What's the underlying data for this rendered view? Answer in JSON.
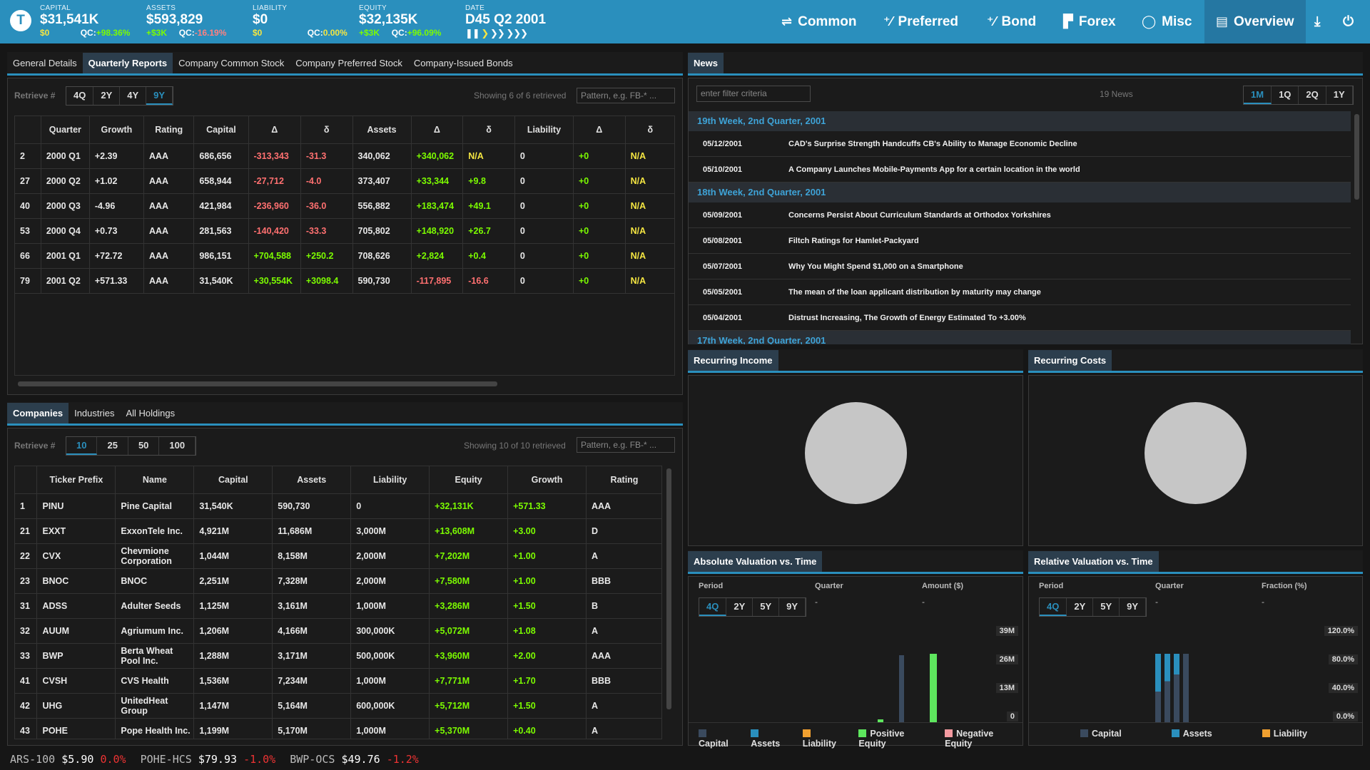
{
  "header": {
    "logo": "T",
    "stats": [
      {
        "label": "CAPITAL",
        "value": "$31,541K",
        "sub1": "$0",
        "sub2": "QC:",
        "sub3": "+98.36%"
      },
      {
        "label": "ASSETS",
        "value": "$593,829",
        "sub1": "+$3K",
        "sub2": "QC:",
        "sub3": "-16.19%"
      },
      {
        "label": "LIABILITY",
        "value": "$0",
        "sub1": "$0",
        "sub2": "QC:",
        "sub3": "0.00%"
      },
      {
        "label": "EQUITY",
        "value": "$32,135K",
        "sub1": "+$3K",
        "sub2": "QC:",
        "sub3": "+96.09%"
      },
      {
        "label": "DATE",
        "value": "D45 Q2 2001"
      }
    ],
    "nav": [
      "Common",
      "Preferred",
      "Bond",
      "Forex",
      "Misc",
      "Overview"
    ]
  },
  "company_tabs": [
    "General Details",
    "Quarterly Reports",
    "Company Common Stock",
    "Company Preferred Stock",
    "Company-Issued Bonds"
  ],
  "quarterly": {
    "retrieve_label": "Retrieve #",
    "ranges": [
      "4Q",
      "2Y",
      "4Y",
      "9Y"
    ],
    "showing": "Showing 6 of 6 retrieved",
    "placeholder": "Pattern, e.g. FB-* ...",
    "headers": [
      "",
      "Quarter",
      "Growth",
      "Rating",
      "Capital",
      "Δ",
      "δ",
      "Assets",
      "Δ",
      "δ",
      "Liability",
      "Δ",
      "δ"
    ],
    "rows": [
      [
        "2",
        "2000 Q1",
        "+2.39",
        "AAA",
        "686,656",
        "-313,343",
        "-31.3",
        "340,062",
        "+340,062",
        "N/A",
        "0",
        "+0",
        "N/A"
      ],
      [
        "27",
        "2000 Q2",
        "+1.02",
        "AAA",
        "658,944",
        "-27,712",
        "-4.0",
        "373,407",
        "+33,344",
        "+9.8",
        "0",
        "+0",
        "N/A"
      ],
      [
        "40",
        "2000 Q3",
        "-4.96",
        "AAA",
        "421,984",
        "-236,960",
        "-36.0",
        "556,882",
        "+183,474",
        "+49.1",
        "0",
        "+0",
        "N/A"
      ],
      [
        "53",
        "2000 Q4",
        "+0.73",
        "AAA",
        "281,563",
        "-140,420",
        "-33.3",
        "705,802",
        "+148,920",
        "+26.7",
        "0",
        "+0",
        "N/A"
      ],
      [
        "66",
        "2001 Q1",
        "+72.72",
        "AAA",
        "986,151",
        "+704,588",
        "+250.2",
        "708,626",
        "+2,824",
        "+0.4",
        "0",
        "+0",
        "N/A"
      ],
      [
        "79",
        "2001 Q2",
        "+571.33",
        "AAA",
        "31,540K",
        "+30,554K",
        "+3098.4",
        "590,730",
        "-117,895",
        "-16.6",
        "0",
        "+0",
        "N/A"
      ]
    ]
  },
  "list_tabs": [
    "Companies",
    "Industries",
    "All Holdings"
  ],
  "companies": {
    "retrieve_label": "Retrieve #",
    "counts": [
      "10",
      "25",
      "50",
      "100"
    ],
    "showing": "Showing 10 of 10 retrieved",
    "placeholder": "Pattern, e.g. FB-* ...",
    "headers": [
      "",
      "Ticker Prefix",
      "Name",
      "Capital",
      "Assets",
      "Liability",
      "Equity",
      "Growth",
      "Rating"
    ],
    "rows": [
      [
        "1",
        "PINU",
        "Pine Capital",
        "31,540K",
        "590,730",
        "0",
        "+32,131K",
        "+571.33",
        "AAA"
      ],
      [
        "21",
        "EXXT",
        "ExxonTele Inc.",
        "4,921M",
        "11,686M",
        "3,000M",
        "+13,608M",
        "+3.00",
        "D"
      ],
      [
        "22",
        "CVX",
        "Chevmione Corporation",
        "1,044M",
        "8,158M",
        "2,000M",
        "+7,202M",
        "+1.00",
        "A"
      ],
      [
        "23",
        "BNOC",
        "BNOC",
        "2,251M",
        "7,328M",
        "2,000M",
        "+7,580M",
        "+1.00",
        "BBB"
      ],
      [
        "31",
        "ADSS",
        "Adulter Seeds",
        "1,125M",
        "3,161M",
        "1,000M",
        "+3,286M",
        "+1.50",
        "B"
      ],
      [
        "32",
        "AUUM",
        "Agriumum Inc.",
        "1,206M",
        "4,166M",
        "300,000K",
        "+5,072M",
        "+1.08",
        "A"
      ],
      [
        "33",
        "BWP",
        "Berta Wheat Pool Inc.",
        "1,288M",
        "3,171M",
        "500,000K",
        "+3,960M",
        "+2.00",
        "AAA"
      ],
      [
        "41",
        "CVSH",
        "CVS Health",
        "1,536M",
        "7,234M",
        "1,000M",
        "+7,771M",
        "+1.70",
        "BBB"
      ],
      [
        "42",
        "UHG",
        "UnitedHeat Group",
        "1,147M",
        "5,164M",
        "600,000K",
        "+5,712M",
        "+1.50",
        "A"
      ],
      [
        "43",
        "POHE",
        "Pope Health Inc.",
        "1,199M",
        "5,170M",
        "1,000M",
        "+5,370M",
        "+0.40",
        "A"
      ]
    ]
  },
  "news": {
    "tab": "News",
    "placeholder": "enter filter criteria",
    "count": "19 News",
    "ranges": [
      "1M",
      "1Q",
      "2Q",
      "1Y"
    ],
    "groups": [
      {
        "title": "19th Week, 2nd Quarter, 2001",
        "items": [
          [
            "05/12/2001",
            "CAD's Surprise Strength Handcuffs CB's Ability to Manage Economic Decline"
          ],
          [
            "05/10/2001",
            "A Company Launches Mobile-Payments App for a certain location in the world"
          ]
        ]
      },
      {
        "title": "18th Week, 2nd Quarter, 2001",
        "items": [
          [
            "05/09/2001",
            "Concerns Persist About Curriculum Standards at Orthodox Yorkshires"
          ],
          [
            "05/08/2001",
            "Filtch Ratings for Hamlet-Packyard"
          ],
          [
            "05/07/2001",
            "Why You Might Spend $1,000 on a Smartphone"
          ],
          [
            "05/05/2001",
            "The mean of the loan applicant distribution by maturity may change"
          ],
          [
            "05/04/2001",
            "Distrust Increasing, The Growth of Energy Estimated To +3.00%"
          ]
        ]
      },
      {
        "title": "17th Week, 2nd Quarter, 2001",
        "items": []
      }
    ]
  },
  "recurring_income": {
    "tab": "Recurring Income"
  },
  "recurring_costs": {
    "tab": "Recurring Costs"
  },
  "abs_val": {
    "tab": "Absolute Valuation vs. Time",
    "col1": "Period",
    "col2": "Quarter",
    "col3": "Amount ($)",
    "v2": "-",
    "v3": "-",
    "ranges": [
      "4Q",
      "2Y",
      "5Y",
      "9Y"
    ],
    "axis": [
      "39M",
      "26M",
      "13M",
      "0"
    ],
    "legend": [
      {
        "name": "Capital",
        "color": "#3a4a5e"
      },
      {
        "name": "Assets",
        "color": "#2a8fbd"
      },
      {
        "name": "Liability",
        "color": "#f0a030"
      },
      {
        "name": "Positive Equity",
        "color": "#5ee65e"
      },
      {
        "name": "Negative Equity",
        "color": "#f39aa0"
      }
    ]
  },
  "rel_val": {
    "tab": "Relative Valuation vs. Time",
    "col1": "Period",
    "col2": "Quarter",
    "col3": "Fraction (%)",
    "v2": "-",
    "v3": "-",
    "ranges": [
      "4Q",
      "2Y",
      "5Y",
      "9Y"
    ],
    "axis": [
      "120.0%",
      "80.0%",
      "40.0%",
      "0.0%"
    ],
    "legend": [
      {
        "name": "Capital",
        "color": "#3a4a5e"
      },
      {
        "name": "Assets",
        "color": "#2a8fbd"
      },
      {
        "name": "Liability",
        "color": "#f0a030"
      }
    ]
  },
  "ticker": [
    {
      "sym": "ARS-100",
      "price": "$5.90",
      "chg": "0.0%"
    },
    {
      "sym": "POHE-HCS",
      "price": "$79.93",
      "chg": "-1.0%"
    },
    {
      "sym": "BWP-OCS",
      "price": "$49.76",
      "chg": "-1.2%"
    }
  ]
}
